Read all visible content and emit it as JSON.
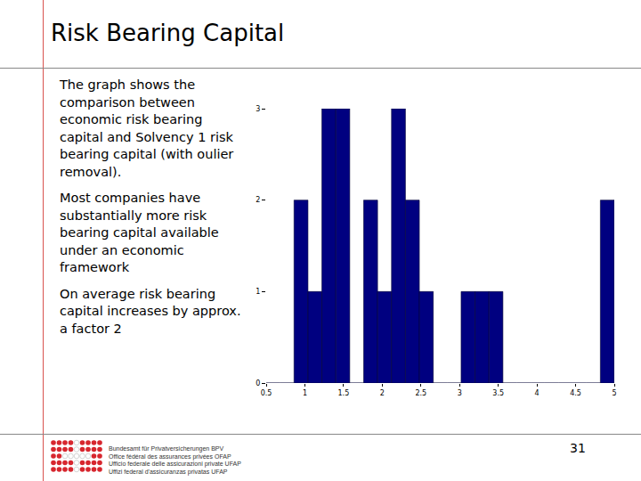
{
  "slide": {
    "title": "Risk Bearing Capital",
    "paragraphs": [
      "The graph shows the comparison between economic risk bearing capital and Solvency 1 risk bearing capital (with oulier removal).",
      "Most companies have substantially more risk bearing capital available under an economic framework",
      "On average risk bearing capital increases by approx. a factor 2"
    ],
    "footer_lines": [
      "Bundesamt für Privatversicherungen BPV",
      "Office fédéral des assurances privées OFAP",
      "Ufficio federale delle assicurazioni private UFAP",
      "Uffizi federal d'assicuranzas privatas UFAP"
    ],
    "page_number": 31
  },
  "chart_data": {
    "type": "histogram",
    "bins": [
      0.5,
      0.68,
      0.86,
      1.04,
      1.22,
      1.4,
      1.58,
      1.76,
      1.94,
      2.12,
      2.3,
      2.48,
      2.66,
      2.84,
      3.02,
      3.2,
      3.38,
      3.56,
      3.74,
      3.92,
      4.1,
      4.28,
      4.46,
      4.64,
      4.82,
      5.0
    ],
    "counts": [
      0,
      0,
      2,
      1,
      3,
      3,
      0,
      2,
      1,
      3,
      2,
      1,
      0,
      0,
      1,
      1,
      1,
      0,
      0,
      0,
      0,
      0,
      0,
      0,
      2
    ],
    "color": "#000080",
    "xlim": [
      0.5,
      5
    ],
    "xticks": [
      0.5,
      1,
      1.5,
      2,
      2.5,
      3,
      3.5,
      4,
      4.5,
      5
    ],
    "ylim": [
      0,
      3
    ],
    "yticks": [
      0,
      1,
      2,
      3
    ],
    "grid": false
  }
}
